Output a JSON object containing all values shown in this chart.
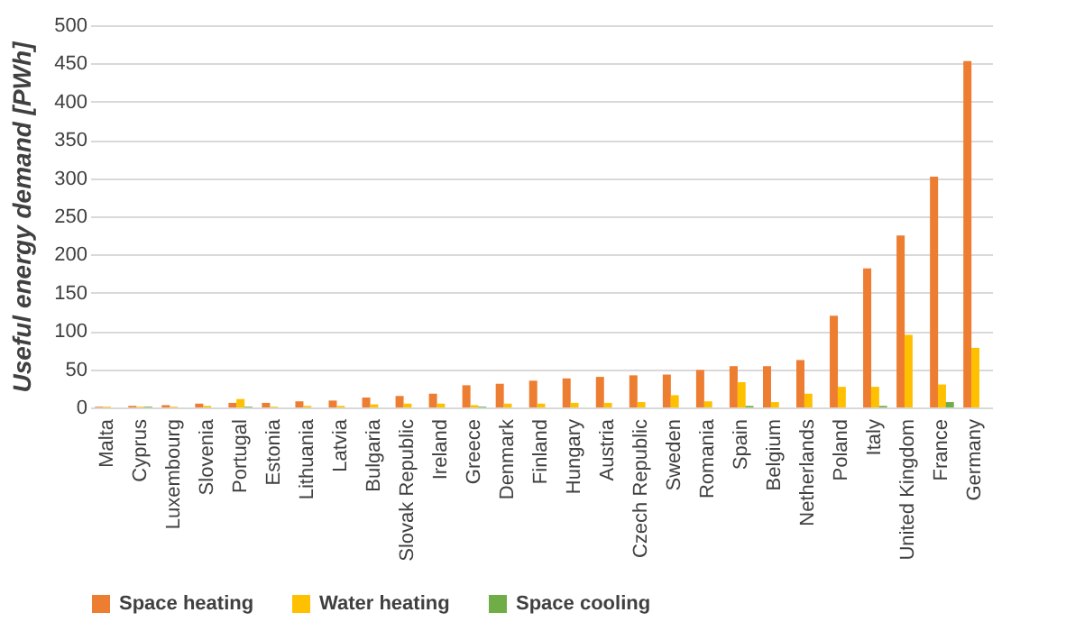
{
  "chart_data": {
    "type": "bar",
    "ylabel": "Useful energy demand [PWh]",
    "categories": [
      "Malta",
      "Cyprus",
      "Luxembourg",
      "Slovenia",
      "Portugal",
      "Estonia",
      "Lithuania",
      "Latvia",
      "Bulgaria",
      "Slovak Republic",
      "Ireland",
      "Greece",
      "Denmark",
      "Finland",
      "Hungary",
      "Austria",
      "Czech Republic",
      "Sweden",
      "Romania",
      "Spain",
      "Belgium",
      "Netherlands",
      "Poland",
      "Italy",
      "United Kingdom",
      "France",
      "Germany"
    ],
    "series": [
      {
        "name": "Space heating",
        "color": "#ed7d31",
        "values": [
          1,
          2,
          3,
          5,
          6,
          6,
          8,
          9,
          13,
          15,
          18,
          29,
          31,
          35,
          38,
          40,
          42,
          43,
          49,
          54,
          54,
          62,
          120,
          182,
          225,
          302,
          453
        ]
      },
      {
        "name": "Water heating",
        "color": "#ffc000",
        "values": [
          1,
          1,
          1,
          2,
          11,
          1,
          2,
          2,
          4,
          5,
          5,
          3,
          5,
          5,
          6,
          6,
          7,
          16,
          8,
          33,
          7,
          18,
          27,
          27,
          95,
          30,
          78
        ]
      },
      {
        "name": "Space cooling",
        "color": "#70ad47",
        "values": [
          0,
          1,
          0,
          0,
          1,
          0,
          0,
          0,
          0,
          0,
          0,
          1,
          0,
          0,
          0,
          0,
          0,
          0,
          0,
          2,
          0,
          0,
          0,
          2,
          0,
          7,
          0
        ]
      }
    ],
    "ylim": [
      0,
      500
    ],
    "yticks": [
      0,
      50,
      100,
      150,
      200,
      250,
      300,
      350,
      400,
      450,
      500
    ],
    "grid": "y",
    "legend": "bottom"
  }
}
